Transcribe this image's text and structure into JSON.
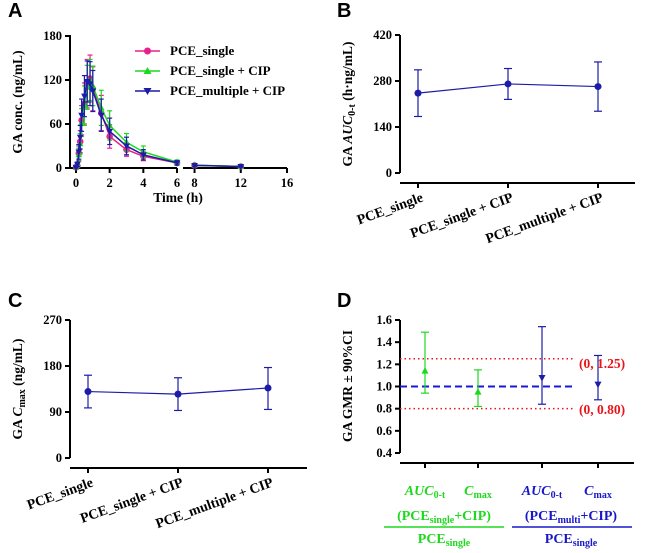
{
  "colors": {
    "axis": "#000000",
    "pce_single": "#e8208c",
    "pce_single_cip": "#1ed81e",
    "pce_multiple_cip": "#1c1ca8",
    "ref_red": "#e8141a",
    "ref_blue": "#1818d8"
  },
  "chart_data": [
    {
      "panel": "A",
      "type": "line",
      "xlabel": "Time (h)",
      "ylabel": "GA conc. (ng/mL)",
      "x_ticks": [
        "0",
        "2",
        "4",
        "6",
        "8",
        "12",
        "16"
      ],
      "y_ticks": [
        "0",
        "60",
        "120",
        "180"
      ],
      "ylim": [
        0,
        180
      ],
      "xlim_segment1": [
        0,
        6
      ],
      "xlim_segment2": [
        7,
        16
      ],
      "series": [
        {
          "name": "PCE_single",
          "marker": "circle",
          "color": "#e8208c",
          "points": [
            {
              "x": 0,
              "y": 1,
              "sd": 1
            },
            {
              "x": 0.083,
              "y": 3,
              "sd": 2
            },
            {
              "x": 0.167,
              "y": 20,
              "sd": 10
            },
            {
              "x": 0.25,
              "y": 36,
              "sd": 15
            },
            {
              "x": 0.333,
              "y": 65,
              "sd": 20
            },
            {
              "x": 0.5,
              "y": 88,
              "sd": 28
            },
            {
              "x": 0.667,
              "y": 115,
              "sd": 33
            },
            {
              "x": 0.833,
              "y": 122,
              "sd": 32
            },
            {
              "x": 1,
              "y": 108,
              "sd": 30
            },
            {
              "x": 1.5,
              "y": 75,
              "sd": 24
            },
            {
              "x": 2,
              "y": 43,
              "sd": 16
            },
            {
              "x": 3,
              "y": 25,
              "sd": 9
            },
            {
              "x": 4,
              "y": 16,
              "sd": 6
            },
            {
              "x": 6,
              "y": 7,
              "sd": 3
            },
            {
              "x": 8,
              "y": 3.5,
              "sd": 1.5
            },
            {
              "x": 12,
              "y": 2,
              "sd": 1
            }
          ]
        },
        {
          "name": "PCE_single + CIP",
          "marker": "triangle-up",
          "color": "#1ed81e",
          "points": [
            {
              "x": 0,
              "y": 1,
              "sd": 1
            },
            {
              "x": 0.083,
              "y": 4,
              "sd": 2
            },
            {
              "x": 0.167,
              "y": 18,
              "sd": 9
            },
            {
              "x": 0.25,
              "y": 33,
              "sd": 14
            },
            {
              "x": 0.333,
              "y": 62,
              "sd": 19
            },
            {
              "x": 0.5,
              "y": 85,
              "sd": 27
            },
            {
              "x": 0.667,
              "y": 110,
              "sd": 30
            },
            {
              "x": 0.833,
              "y": 120,
              "sd": 28
            },
            {
              "x": 1,
              "y": 112,
              "sd": 27
            },
            {
              "x": 1.5,
              "y": 82,
              "sd": 24
            },
            {
              "x": 2,
              "y": 58,
              "sd": 20
            },
            {
              "x": 3,
              "y": 35,
              "sd": 12
            },
            {
              "x": 4,
              "y": 22,
              "sd": 8
            },
            {
              "x": 6,
              "y": 8,
              "sd": 3
            },
            {
              "x": 8,
              "y": 4,
              "sd": 2
            },
            {
              "x": 12,
              "y": 2,
              "sd": 1
            }
          ]
        },
        {
          "name": "PCE_multiple + CIP",
          "marker": "triangle-down",
          "color": "#1c1ca8",
          "points": [
            {
              "x": 0,
              "y": 1,
              "sd": 1
            },
            {
              "x": 0.083,
              "y": 5,
              "sd": 3
            },
            {
              "x": 0.167,
              "y": 22,
              "sd": 10
            },
            {
              "x": 0.25,
              "y": 42,
              "sd": 16
            },
            {
              "x": 0.333,
              "y": 72,
              "sd": 22
            },
            {
              "x": 0.5,
              "y": 98,
              "sd": 28
            },
            {
              "x": 0.667,
              "y": 118,
              "sd": 28
            },
            {
              "x": 0.833,
              "y": 115,
              "sd": 30
            },
            {
              "x": 1,
              "y": 105,
              "sd": 28
            },
            {
              "x": 1.5,
              "y": 72,
              "sd": 22
            },
            {
              "x": 2,
              "y": 50,
              "sd": 18
            },
            {
              "x": 3,
              "y": 30,
              "sd": 12
            },
            {
              "x": 4,
              "y": 18,
              "sd": 7
            },
            {
              "x": 6,
              "y": 7,
              "sd": 3
            },
            {
              "x": 8,
              "y": 3.5,
              "sd": 1.5
            },
            {
              "x": 12,
              "y": 2,
              "sd": 1
            }
          ]
        }
      ],
      "legend": [
        "PCE_single",
        "PCE_single + CIP",
        "PCE_multiple + CIP"
      ],
      "legend_position": "top-right"
    },
    {
      "panel": "B",
      "type": "line",
      "ylabel_prefix": "GA ",
      "ylabel_italic": "AUC",
      "ylabel_sub": "0-t",
      "ylabel_suffix": " (h·ng/mL)",
      "y_ticks": [
        "0",
        "140",
        "280",
        "420"
      ],
      "ylim": [
        0,
        420
      ],
      "categories": [
        "PCE_single",
        "PCE_single + CIP",
        "PCE_multiple + CIP"
      ],
      "values": [
        243,
        271,
        263
      ],
      "lower": [
        172,
        224,
        188
      ],
      "upper": [
        314,
        318,
        338
      ]
    },
    {
      "panel": "C",
      "type": "line",
      "ylabel_prefix": "GA ",
      "ylabel_italic": "C",
      "ylabel_sub": "max",
      "ylabel_suffix": " (ng/mL)",
      "y_ticks": [
        "0",
        "90",
        "180",
        "270"
      ],
      "ylim": [
        0,
        270
      ],
      "categories": [
        "PCE_single",
        "PCE_single + CIP",
        "PCE_multiple + CIP"
      ],
      "values": [
        130,
        125,
        137
      ],
      "lower": [
        98,
        93,
        95
      ],
      "upper": [
        162,
        157,
        177
      ]
    },
    {
      "panel": "D",
      "type": "scatter",
      "ylabel": "GA GMR ± 90%CI",
      "y_ticks": [
        "0.4",
        "0.6",
        "0.8",
        "1.0",
        "1.2",
        "1.4",
        "1.6"
      ],
      "ylim": [
        0.4,
        1.6
      ],
      "points": [
        {
          "group": "single",
          "metric": "AUC",
          "y": 1.14,
          "lower": 0.94,
          "upper": 1.49,
          "marker": "triangle-up",
          "color": "#1ed81e"
        },
        {
          "group": "single",
          "metric": "Cmax",
          "y": 0.95,
          "lower": 0.82,
          "upper": 1.15,
          "marker": "triangle-up",
          "color": "#1ed81e"
        },
        {
          "group": "multi",
          "metric": "AUC",
          "y": 1.08,
          "lower": 0.84,
          "upper": 1.54,
          "marker": "triangle-down",
          "color": "#1c1ca8"
        },
        {
          "group": "multi",
          "metric": "Cmax",
          "y": 1.02,
          "lower": 0.88,
          "upper": 1.28,
          "marker": "triangle-down",
          "color": "#1c1ca8"
        }
      ],
      "ref_lines": [
        {
          "y": 1.25,
          "label": "(0, 1.25)",
          "style": "dotted",
          "color": "#e8141a"
        },
        {
          "y": 1.0,
          "label": "",
          "style": "dashed",
          "color": "#1818d8"
        },
        {
          "y": 0.8,
          "label": "(0, 0.80)",
          "style": "dotted",
          "color": "#e8141a"
        }
      ],
      "x_labels": {
        "auc_italic": "AUC",
        "auc_sub": "0-t",
        "cmax_italic": "C",
        "cmax_sub": "max"
      },
      "group_labels": {
        "single_num_open": "(PCE",
        "single_num_sub": "single",
        "single_num_close": "+CIP)",
        "single_den": "PCE",
        "single_den_sub": "single",
        "multi_num_open": "(PCE",
        "multi_num_sub": "multi",
        "multi_num_close": "+CIP)",
        "multi_den": "PCE",
        "multi_den_sub": "single"
      }
    }
  ],
  "panel_letters": [
    "A",
    "B",
    "C",
    "D"
  ]
}
